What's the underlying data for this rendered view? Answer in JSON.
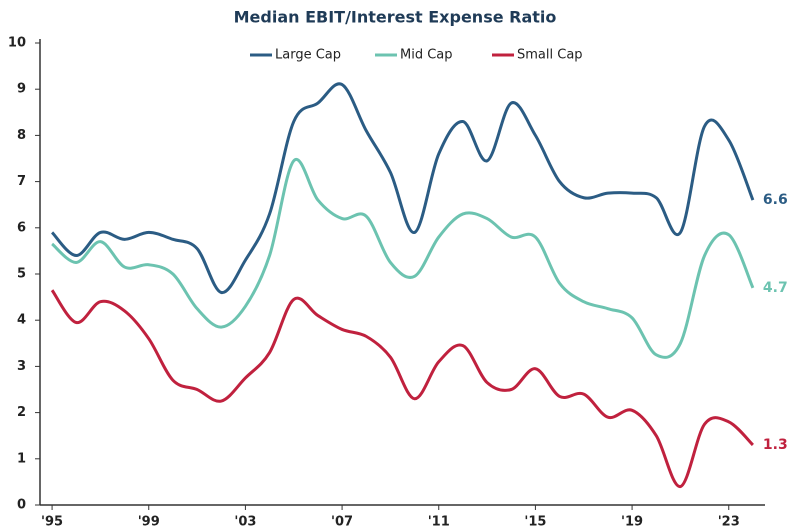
{
  "chart_data": {
    "type": "line",
    "title": "Median EBIT/Interest Expense Ratio",
    "x": [
      1995,
      1996,
      1997,
      1998,
      1999,
      2000,
      2001,
      2002,
      2003,
      2004,
      2005,
      2006,
      2007,
      2008,
      2009,
      2010,
      2011,
      2012,
      2013,
      2014,
      2015,
      2016,
      2017,
      2018,
      2019,
      2020,
      2021,
      2022,
      2023,
      2024
    ],
    "series": [
      {
        "name": "Large Cap",
        "color": "#2b5c84",
        "values": [
          5.9,
          5.4,
          5.9,
          5.75,
          5.9,
          5.75,
          5.55,
          4.6,
          5.3,
          6.3,
          8.3,
          8.7,
          9.1,
          8.1,
          7.2,
          5.9,
          7.6,
          8.3,
          7.45,
          8.7,
          8.0,
          7.0,
          6.65,
          6.75,
          6.75,
          6.65,
          5.9,
          8.2,
          7.9,
          6.6
        ]
      },
      {
        "name": "Mid Cap",
        "color": "#6cc3b0",
        "values": [
          5.65,
          5.25,
          5.7,
          5.15,
          5.2,
          5.0,
          4.25,
          3.85,
          4.3,
          5.4,
          7.45,
          6.6,
          6.2,
          6.25,
          5.25,
          4.95,
          5.8,
          6.3,
          6.2,
          5.8,
          5.8,
          4.8,
          4.4,
          4.25,
          4.05,
          3.25,
          3.5,
          5.4,
          5.85,
          4.7
        ]
      },
      {
        "name": "Small Cap",
        "color": "#c0213e",
        "values": [
          4.65,
          3.95,
          4.4,
          4.2,
          3.6,
          2.7,
          2.5,
          2.25,
          2.75,
          3.3,
          4.45,
          4.1,
          3.8,
          3.65,
          3.2,
          2.3,
          3.1,
          3.45,
          2.65,
          2.5,
          2.95,
          2.35,
          2.4,
          1.9,
          2.05,
          1.5,
          0.4,
          1.75,
          1.8,
          1.3
        ]
      }
    ],
    "xlim": [
      1994.5,
      2024.5
    ],
    "xticks": [
      {
        "value": 1995,
        "label": "'95"
      },
      {
        "value": 1999,
        "label": "'99"
      },
      {
        "value": 2003,
        "label": "'03"
      },
      {
        "value": 2007,
        "label": "'07"
      },
      {
        "value": 2011,
        "label": "'11"
      },
      {
        "value": 2015,
        "label": "'15"
      },
      {
        "value": 2019,
        "label": "'19"
      },
      {
        "value": 2023,
        "label": "'23"
      }
    ],
    "ylim": [
      0,
      10
    ],
    "yticks": [
      0,
      1,
      2,
      3,
      4,
      5,
      6,
      7,
      8,
      9,
      10
    ],
    "legend": "top"
  }
}
